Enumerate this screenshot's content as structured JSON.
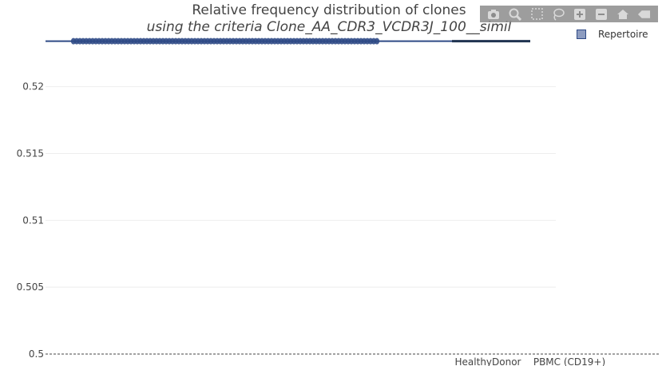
{
  "title": "Relative frequency distribution of clones",
  "subtitle": "using the criteria Clone_AA_CDR3_VCDR3J_100__simil",
  "modebar": {
    "icons": [
      "camera-icon",
      "zoom-icon",
      "box-select-icon",
      "lasso-icon",
      "zoom-in-icon",
      "zoom-out-icon",
      "home-icon",
      "hover-icon"
    ]
  },
  "legend": {
    "items": [
      {
        "label": "Repertoire",
        "color": "#2f4a86"
      }
    ]
  },
  "chart_data": {
    "type": "scatter",
    "title": "Relative frequency distribution of clones",
    "subtitle": "using the criteria Clone_AA_CDR3_VCDR3J_100__simil",
    "xlabel": "",
    "ylabel": "",
    "x_categories": [
      "HealthyDonor",
      "PBMC (CD19+)"
    ],
    "y_ticks": [
      0.5,
      0.505,
      0.51,
      0.515,
      0.52
    ],
    "ylim": [
      0.5,
      0.5235
    ],
    "grid": true,
    "legend_position": "top-right",
    "series": [
      {
        "name": "Repertoire",
        "color": "#2f4a86",
        "y_value": 0.5234
      }
    ]
  }
}
